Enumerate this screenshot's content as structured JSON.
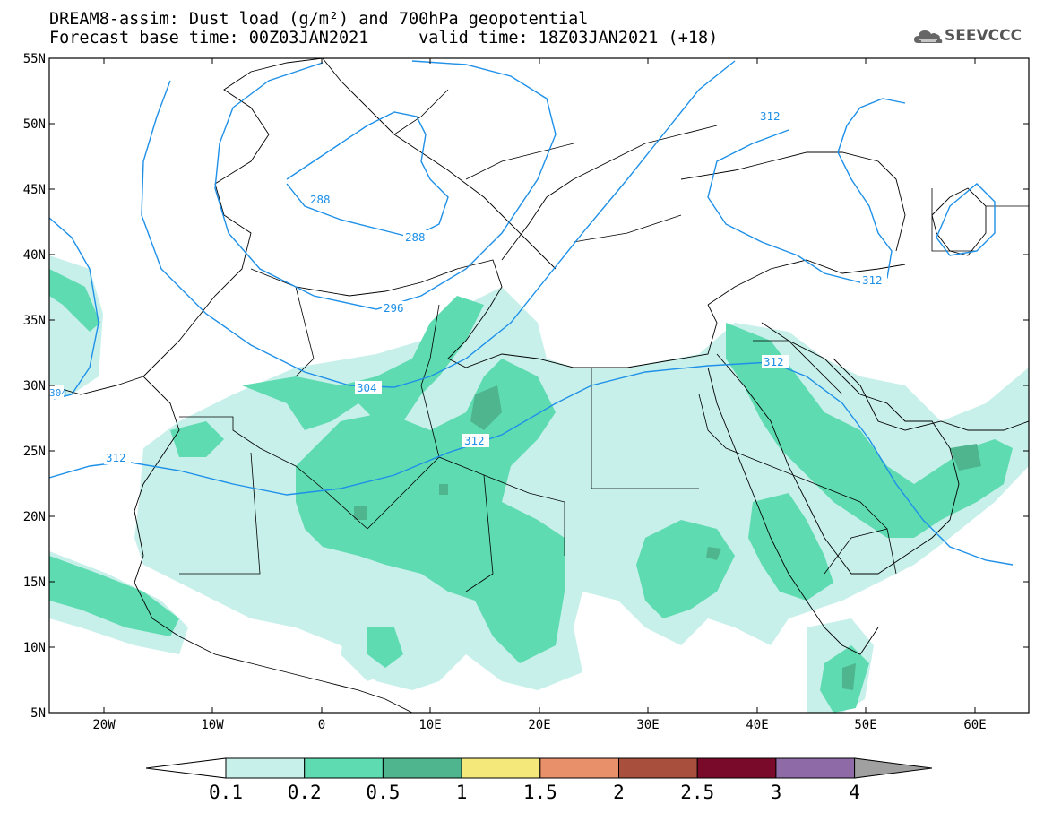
{
  "title_line1": "DREAM8-assim: Dust load (g/m²) and 700hPa geopotential",
  "title_line2": "Forecast base time: 00Z03JAN2021     valid time: 18Z03JAN2021 (+18)",
  "logo_text": "SEEVCCC",
  "lat_labels": [
    "55N",
    "50N",
    "45N",
    "40N",
    "35N",
    "30N",
    "25N",
    "20N",
    "15N",
    "10N",
    "5N"
  ],
  "lon_labels": [
    "20W",
    "10W",
    "0",
    "10E",
    "20E",
    "30E",
    "40E",
    "50E",
    "60E"
  ],
  "contour_labels": [
    "288",
    "288",
    "296",
    "304",
    "312",
    "312",
    "312",
    "312",
    "312",
    "304"
  ],
  "colorbar": {
    "levels": [
      "0.1",
      "0.2",
      "0.5",
      "1",
      "1.5",
      "2",
      "2.5",
      "3",
      "4"
    ],
    "colors": [
      "#ffffff",
      "#c7f0ea",
      "#5edbb1",
      "#4eb58e",
      "#f5e87a",
      "#e8906a",
      "#a94f3e",
      "#7a0a2a",
      "#8e6aa6",
      "#a0a0a0"
    ]
  },
  "contour_color": "#1e90e8"
}
